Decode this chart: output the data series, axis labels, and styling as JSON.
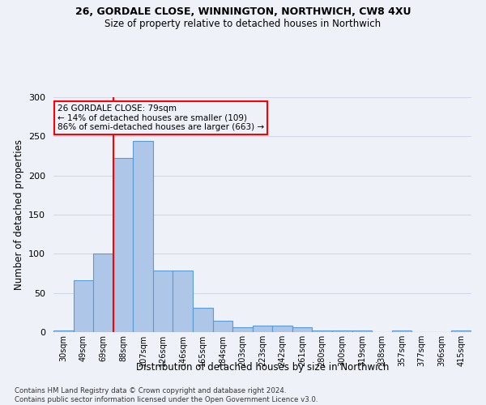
{
  "title1": "26, GORDALE CLOSE, WINNINGTON, NORTHWICH, CW8 4XU",
  "title2": "Size of property relative to detached houses in Northwich",
  "xlabel": "Distribution of detached houses by size in Northwich",
  "ylabel": "Number of detached properties",
  "categories": [
    "30sqm",
    "49sqm",
    "69sqm",
    "88sqm",
    "107sqm",
    "126sqm",
    "146sqm",
    "165sqm",
    "184sqm",
    "203sqm",
    "223sqm",
    "242sqm",
    "261sqm",
    "280sqm",
    "300sqm",
    "319sqm",
    "338sqm",
    "357sqm",
    "377sqm",
    "396sqm",
    "415sqm"
  ],
  "values": [
    2,
    66,
    100,
    222,
    244,
    79,
    79,
    31,
    15,
    6,
    8,
    8,
    6,
    2,
    2,
    2,
    0,
    2,
    0,
    0,
    2
  ],
  "bar_color": "#aec6e8",
  "bar_edge_color": "#5b9bd5",
  "grid_color": "#d0d8e8",
  "vline_color": "red",
  "annotation_text": "26 GORDALE CLOSE: 79sqm\n← 14% of detached houses are smaller (109)\n86% of semi-detached houses are larger (663) →",
  "annotation_box_edge": "red",
  "ylim": [
    0,
    300
  ],
  "yticks": [
    0,
    50,
    100,
    150,
    200,
    250,
    300
  ],
  "footnote": "Contains HM Land Registry data © Crown copyright and database right 2024.\nContains public sector information licensed under the Open Government Licence v3.0.",
  "bg_color": "#eef2f8"
}
